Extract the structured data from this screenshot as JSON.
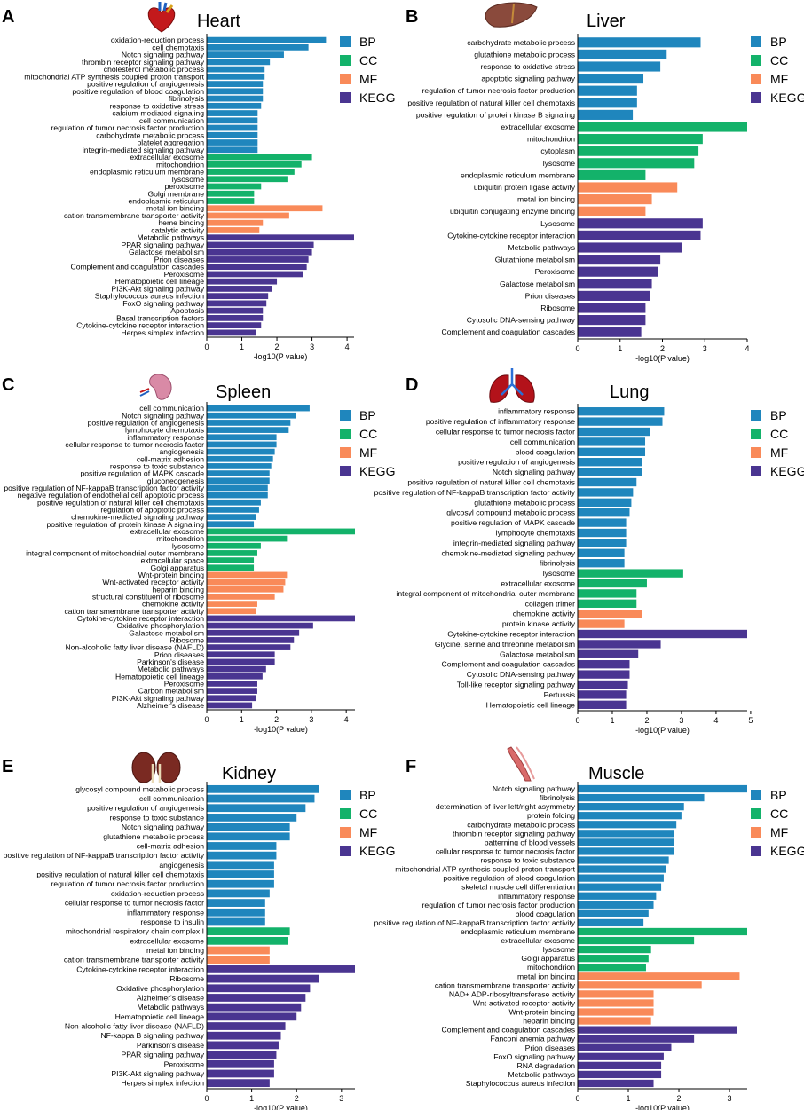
{
  "colors": {
    "BP": "#1f86bd",
    "CC": "#13b26a",
    "MF": "#f98a59",
    "KEGG": "#4a3591"
  },
  "legend": [
    "BP",
    "CC",
    "MF",
    "KEGG"
  ],
  "chart_data": [
    {
      "type": "bar",
      "panel_letter": "A",
      "title": "Heart",
      "xlabel": "-log10(P value)",
      "xlim": [
        0,
        4.2
      ],
      "xticks": [
        0,
        1,
        2,
        3,
        4
      ],
      "categories": [
        "oxidation-reduction process",
        "cell chemotaxis",
        "Notch signaling pathway",
        "thrombin receptor signaling pathway",
        "cholesterol metabolic process",
        "mitochondrial ATP synthesis coupled proton transport",
        "positive regulation of angiogenesis",
        "positive regulation of blood coagulation",
        "fibrinolysis",
        "response to oxidative stress",
        "calcium-mediated signaling",
        "cell communication",
        "regulation of tumor necrosis factor production",
        "carbohydrate metabolic process",
        "platelet aggregation",
        "integrin-mediated signaling pathway",
        "extracellular exosome",
        "mitochondrion",
        "endoplasmic reticulum membrane",
        "lysosome",
        "peroxisome",
        "Golgi membrane",
        "endoplasmic reticulum",
        "metal ion binding",
        "cation transmembrane transporter activity",
        "heme binding",
        "catalytic activity",
        "Metabolic pathways",
        "PPAR signaling pathway",
        "Galactose metabolism",
        "Prion diseases",
        "Complement and coagulation cascades",
        "Peroxisome",
        "Hematopoietic cell lineage",
        "PI3K-Akt signaling pathway",
        "Staphylococcus aureus infection",
        "FoxO signaling pathway",
        "Apoptosis",
        "Basal transcription factors",
        "Cytokine-cytokine receptor interaction",
        "Herpes simplex infection"
      ],
      "values": [
        3.4,
        2.9,
        2.2,
        1.8,
        1.65,
        1.65,
        1.6,
        1.6,
        1.6,
        1.55,
        1.45,
        1.45,
        1.45,
        1.45,
        1.45,
        1.45,
        3.0,
        2.7,
        2.5,
        2.3,
        1.55,
        1.35,
        1.35,
        3.3,
        2.35,
        1.6,
        1.5,
        4.2,
        3.05,
        3.0,
        2.9,
        2.85,
        2.75,
        2.0,
        1.85,
        1.75,
        1.7,
        1.6,
        1.6,
        1.55,
        1.4
      ],
      "groups": [
        "BP",
        "BP",
        "BP",
        "BP",
        "BP",
        "BP",
        "BP",
        "BP",
        "BP",
        "BP",
        "BP",
        "BP",
        "BP",
        "BP",
        "BP",
        "BP",
        "CC",
        "CC",
        "CC",
        "CC",
        "CC",
        "CC",
        "CC",
        "MF",
        "MF",
        "MF",
        "MF",
        "KEGG",
        "KEGG",
        "KEGG",
        "KEGG",
        "KEGG",
        "KEGG",
        "KEGG",
        "KEGG",
        "KEGG",
        "KEGG",
        "KEGG",
        "KEGG",
        "KEGG",
        "KEGG"
      ],
      "icon": "heart-icon"
    },
    {
      "type": "bar",
      "panel_letter": "B",
      "title": "Liver",
      "xlabel": "-log10(P value)",
      "xlim": [
        0,
        4
      ],
      "xticks": [
        0,
        1,
        2,
        3,
        4
      ],
      "categories": [
        "carbohydrate metabolic process",
        "glutathione metabolic process",
        "response to oxidative stress",
        "apoptotic signaling pathway",
        "regulation of tumor necrosis factor production",
        "positive regulation of natural killer cell chemotaxis",
        "positive regulation of protein kinase B signaling",
        "extracellular exosome",
        "mitochondrion",
        "cytoplasm",
        "lysosome",
        "endoplasmic reticulum membrane",
        "ubiquitin protein ligase activity",
        "metal ion binding",
        "ubiquitin conjugating enzyme binding",
        "Lysosome",
        "Cytokine-cytokine receptor interaction",
        "Metabolic pathways",
        "Glutathione metabolism",
        "Peroxisome",
        "Galactose metabolism",
        "Prion diseases",
        "Ribosome",
        "Cytosolic DNA-sensing pathway",
        "Complement and coagulation cascades"
      ],
      "values": [
        2.9,
        2.1,
        1.95,
        1.55,
        1.4,
        1.4,
        1.3,
        4.0,
        2.95,
        2.85,
        2.75,
        1.6,
        2.35,
        1.75,
        1.6,
        2.95,
        2.9,
        2.45,
        1.95,
        1.9,
        1.75,
        1.7,
        1.6,
        1.6,
        1.5
      ],
      "groups": [
        "BP",
        "BP",
        "BP",
        "BP",
        "BP",
        "BP",
        "BP",
        "CC",
        "CC",
        "CC",
        "CC",
        "CC",
        "MF",
        "MF",
        "MF",
        "KEGG",
        "KEGG",
        "KEGG",
        "KEGG",
        "KEGG",
        "KEGG",
        "KEGG",
        "KEGG",
        "KEGG",
        "KEGG"
      ],
      "icon": "liver-icon"
    },
    {
      "type": "bar",
      "panel_letter": "C",
      "title": "Spleen",
      "xlabel": "-log10(P value)",
      "xlim": [
        0,
        4.25
      ],
      "xticks": [
        0,
        1,
        2,
        3,
        4
      ],
      "categories": [
        "cell communication",
        "Notch signaling pathway",
        "positive regulation of angiogenesis",
        "lymphocyte chemotaxis",
        "inflammatory response",
        "cellular response to tumor necrosis factor",
        "angiogenesis",
        "cell-matrix adhesion",
        "response to toxic substance",
        "positive regulation of MAPK cascade",
        "gluconeogenesis",
        "positive regulation of NF-kappaB transcription factor activity",
        "negative regulation of endothelial cell apoptotic process",
        "positive regulation of natural killer cell chemotaxis",
        "regulation of apoptotic process",
        "chemokine-mediated signaling pathway",
        "positive regulation of protein kinase A signaling",
        "extracellular exosome",
        "mitochondrion",
        "lysosome",
        "integral component of mitochondrial outer membrane",
        "extracellular space",
        "Golgi apparatus",
        "Wnt-protein binding",
        "Wnt-activated receptor activity",
        "heparin binding",
        "structural constituent of ribosome",
        "chemokine activity",
        "cation transmembrane transporter activity",
        "Cytokine-cytokine receptor interaction",
        "Oxidative phosphorylation",
        "Galactose metabolism",
        "Ribosome",
        "Non-alcoholic fatty liver disease (NAFLD)",
        "Prion diseases",
        "Parkinson's disease",
        "Metabolic pathways",
        "Hematopoietic cell lineage",
        "Peroxisome",
        "Carbon metabolism",
        "PI3K-Akt signaling pathway",
        "Alzheimer's disease"
      ],
      "values": [
        2.95,
        2.55,
        2.4,
        2.35,
        2.0,
        2.0,
        1.95,
        1.9,
        1.85,
        1.8,
        1.8,
        1.75,
        1.75,
        1.55,
        1.5,
        1.4,
        1.35,
        4.25,
        2.3,
        1.55,
        1.45,
        1.35,
        1.35,
        2.3,
        2.25,
        2.2,
        1.95,
        1.45,
        1.4,
        4.25,
        3.05,
        2.65,
        2.5,
        2.4,
        1.95,
        1.95,
        1.7,
        1.6,
        1.45,
        1.45,
        1.4,
        1.3
      ],
      "groups": [
        "BP",
        "BP",
        "BP",
        "BP",
        "BP",
        "BP",
        "BP",
        "BP",
        "BP",
        "BP",
        "BP",
        "BP",
        "BP",
        "BP",
        "BP",
        "BP",
        "BP",
        "CC",
        "CC",
        "CC",
        "CC",
        "CC",
        "CC",
        "MF",
        "MF",
        "MF",
        "MF",
        "MF",
        "MF",
        "KEGG",
        "KEGG",
        "KEGG",
        "KEGG",
        "KEGG",
        "KEGG",
        "KEGG",
        "KEGG",
        "KEGG",
        "KEGG",
        "KEGG",
        "KEGG",
        "KEGG"
      ],
      "icon": "spleen-icon"
    },
    {
      "type": "bar",
      "panel_letter": "D",
      "title": "Lung",
      "xlabel": "-log10(P value)",
      "xlim": [
        0,
        4.9
      ],
      "xticks": [
        0,
        1,
        2,
        3,
        4,
        5
      ],
      "categories": [
        "inflammatory response",
        "positive regulation of inflammatory response",
        "cellular response to tumor necrosis factor",
        "cell communication",
        "blood coagulation",
        "positive regulation of angiogenesis",
        "Notch signaling pathway",
        "positive regulation of natural killer cell chemotaxis",
        "positive regulation of NF-kappaB transcription factor activity",
        "glutathione metabolic process",
        "glycosyl compound metabolic process",
        "positive regulation of MAPK cascade",
        "lymphocyte chemotaxis",
        "integrin-mediated signaling pathway",
        "chemokine-mediated signaling pathway",
        "fibrinolysis",
        "lysosome",
        "extracellular exosome",
        "integral component of mitochondrial outer membrane",
        "collagen trimer",
        "chemokine activity",
        "protein kinase activity",
        "Cytokine-cytokine receptor interaction",
        "Glycine, serine and threonine metabolism",
        "Galactose metabolism",
        "Complement and coagulation cascades",
        "Cytosolic DNA-sensing pathway",
        "Toll-like receptor signaling pathway",
        "Pertussis",
        "Hematopoietic cell lineage"
      ],
      "values": [
        2.5,
        2.45,
        2.1,
        1.95,
        1.95,
        1.85,
        1.85,
        1.7,
        1.6,
        1.55,
        1.5,
        1.4,
        1.4,
        1.4,
        1.35,
        1.35,
        3.05,
        2.0,
        1.7,
        1.7,
        1.85,
        1.35,
        4.9,
        2.4,
        1.75,
        1.5,
        1.5,
        1.45,
        1.4,
        1.4
      ],
      "groups": [
        "BP",
        "BP",
        "BP",
        "BP",
        "BP",
        "BP",
        "BP",
        "BP",
        "BP",
        "BP",
        "BP",
        "BP",
        "BP",
        "BP",
        "BP",
        "BP",
        "CC",
        "CC",
        "CC",
        "CC",
        "MF",
        "MF",
        "KEGG",
        "KEGG",
        "KEGG",
        "KEGG",
        "KEGG",
        "KEGG",
        "KEGG",
        "KEGG"
      ],
      "icon": "lung-icon"
    },
    {
      "type": "bar",
      "panel_letter": "E",
      "title": "Kidney",
      "xlabel": "-log10(P value)",
      "xlim": [
        0,
        3.3
      ],
      "xticks": [
        0,
        1,
        2,
        3
      ],
      "categories": [
        "glycosyl compound metabolic process",
        "cell communication",
        "positive regulation of angiogenesis",
        "response to toxic substance",
        "Notch signaling pathway",
        "glutathione metabolic process",
        "cell-matrix adhesion",
        "positive regulation of NF-kappaB transcription factor activity",
        "angiogenesis",
        "positive regulation of natural killer cell chemotaxis",
        "regulation of tumor necrosis factor production",
        "oxidation-reduction process",
        "cellular response to tumor necrosis factor",
        "inflammatory response",
        "response to insulin",
        "mitochondrial respiratory chain complex I",
        "extracellular exosome",
        "metal ion binding",
        "cation transmembrane transporter activity",
        "Cytokine-cytokine receptor interaction",
        "Ribosome",
        "Oxidative phosphorylation",
        "Alzheimer's disease",
        "Metabolic pathways",
        "Hematopoietic cell lineage",
        "Non-alcoholic fatty liver disease (NAFLD)",
        "NF-kappa B signaling pathway",
        "Parkinson's disease",
        "PPAR signaling pathway",
        "Peroxisome",
        "PI3K-Akt signaling pathway",
        "Herpes simplex infection"
      ],
      "values": [
        2.5,
        2.4,
        2.2,
        2.0,
        1.85,
        1.85,
        1.55,
        1.55,
        1.5,
        1.5,
        1.5,
        1.4,
        1.3,
        1.3,
        1.3,
        1.85,
        1.8,
        1.4,
        1.4,
        3.3,
        2.5,
        2.3,
        2.2,
        2.1,
        2.0,
        1.75,
        1.65,
        1.6,
        1.55,
        1.5,
        1.5,
        1.4
      ],
      "groups": [
        "BP",
        "BP",
        "BP",
        "BP",
        "BP",
        "BP",
        "BP",
        "BP",
        "BP",
        "BP",
        "BP",
        "BP",
        "BP",
        "BP",
        "BP",
        "CC",
        "CC",
        "MF",
        "MF",
        "KEGG",
        "KEGG",
        "KEGG",
        "KEGG",
        "KEGG",
        "KEGG",
        "KEGG",
        "KEGG",
        "KEGG",
        "KEGG",
        "KEGG",
        "KEGG",
        "KEGG"
      ],
      "icon": "kidney-icon"
    },
    {
      "type": "bar",
      "panel_letter": "F",
      "title": "Muscle",
      "xlabel": "-log10(P value)",
      "xlim": [
        0,
        3.35
      ],
      "xticks": [
        0,
        1,
        2,
        3
      ],
      "categories": [
        "Notch signaling pathway",
        "fibrinolysis",
        "determination of liver left/right asymmetry",
        "protein folding",
        "carbohydrate metabolic process",
        "thrombin receptor signaling pathway",
        "patterning of blood vessels",
        "cellular response to tumor necrosis factor",
        "response to toxic substance",
        "mitochondrial ATP synthesis coupled proton transport",
        "positive regulation of blood coagulation",
        "skeletal muscle cell differentiation",
        "inflammatory response",
        "regulation of tumor necrosis factor production",
        "blood coagulation",
        "positive regulation of NF-kappaB transcription factor activity",
        "endoplasmic reticulum membrane",
        "extracellular exosome",
        "lysosome",
        "Golgi apparatus",
        "mitochondrion",
        "metal ion binding",
        "cation transmembrane transporter activity",
        "NAD+ ADP-ribosyltransferase activity",
        "Wnt-activated receptor activity",
        "Wnt-protein binding",
        "heparin binding",
        "Complement and coagulation cascades",
        "Fanconi anemia pathway",
        "Prion diseases",
        "FoxO signaling pathway",
        "RNA degradation",
        "Metabolic pathways",
        "Staphylococcus aureus infection"
      ],
      "values": [
        3.35,
        2.5,
        2.1,
        2.05,
        1.95,
        1.9,
        1.9,
        1.9,
        1.8,
        1.75,
        1.7,
        1.65,
        1.55,
        1.5,
        1.4,
        1.3,
        3.35,
        2.3,
        1.45,
        1.4,
        1.35,
        3.2,
        2.45,
        1.5,
        1.5,
        1.5,
        1.45,
        3.15,
        2.3,
        1.85,
        1.7,
        1.65,
        1.65,
        1.5
      ],
      "groups": [
        "BP",
        "BP",
        "BP",
        "BP",
        "BP",
        "BP",
        "BP",
        "BP",
        "BP",
        "BP",
        "BP",
        "BP",
        "BP",
        "BP",
        "BP",
        "BP",
        "CC",
        "CC",
        "CC",
        "CC",
        "CC",
        "MF",
        "MF",
        "MF",
        "MF",
        "MF",
        "MF",
        "KEGG",
        "KEGG",
        "KEGG",
        "KEGG",
        "KEGG",
        "KEGG",
        "KEGG"
      ],
      "icon": "muscle-icon"
    }
  ]
}
